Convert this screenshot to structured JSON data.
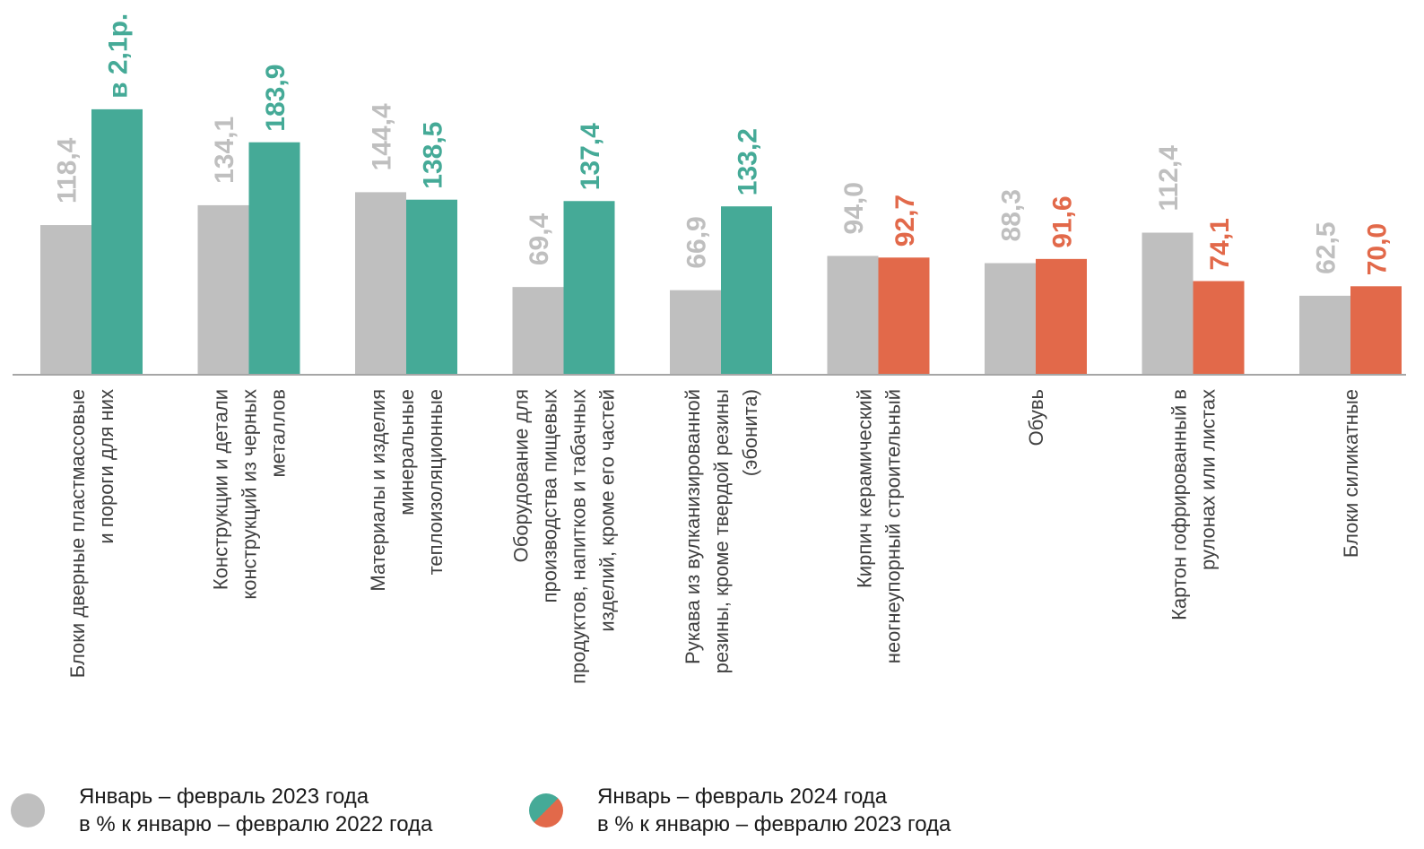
{
  "chart_data": {
    "type": "bar",
    "categories": [
      [
        "Блоки дверные пластмассовые",
        "и пороги для них"
      ],
      [
        "Конструкции и детали",
        "конструкций из черных",
        "металлов"
      ],
      [
        "Материалы и изделия",
        "минеральные",
        "теплоизоляционные"
      ],
      [
        "Оборудование для",
        "производства пищевых",
        "продуктов, напитков и табачных",
        "изделий, кроме его частей"
      ],
      [
        "Рукава из вулканизированной",
        "резины, кроме твердой резины",
        "(эбонита)"
      ],
      [
        "Кирпич керамический",
        "неогнеупорный строительный"
      ],
      [
        "Обувь"
      ],
      [
        "Картон гофрированный в",
        "рулонах или листах"
      ],
      [
        "Блоки силикатные"
      ]
    ],
    "series": [
      {
        "name": "Январь – февраль 2023 года в % к январю – февралю 2022 года",
        "values": [
          118.4,
          134.1,
          144.4,
          69.4,
          66.9,
          94.0,
          88.3,
          112.4,
          62.5
        ],
        "labels": [
          "118,4",
          "134,1",
          "144,4",
          "69,4",
          "66,9",
          "94,0",
          "88,3",
          "112,4",
          "62,5"
        ],
        "color": "#bfbfbf"
      },
      {
        "name": "Январь – февраль 2024 года в % к январю – февралю 2023 года",
        "values": [
          210.0,
          183.9,
          138.5,
          137.4,
          133.2,
          92.7,
          91.6,
          74.1,
          70.0
        ],
        "labels": [
          "в 2,1р.",
          "183,9",
          "138,5",
          "137,4",
          "133,2",
          "92,7",
          "91,6",
          "74,1",
          "70,0"
        ],
        "color_growth": "#45aa97",
        "color_decline": "#e2694a"
      }
    ],
    "threshold": 100,
    "legend_position": "bottom"
  },
  "legend": [
    {
      "line1": "Январь – февраль 2023 года",
      "line2": "в % к январю – февралю 2022 года"
    },
    {
      "line1": "Январь – февраль 2024 года",
      "line2": "в % к январю – февралю 2023 года"
    }
  ]
}
